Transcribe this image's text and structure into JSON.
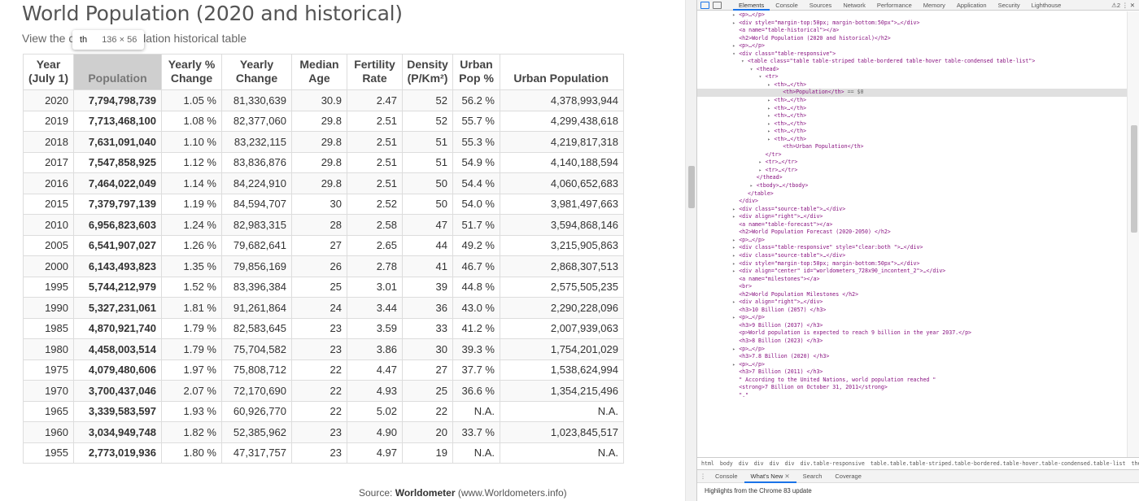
{
  "page": {
    "title": "World Population (2020 and historical)",
    "subtitle": "View the complete population historical table",
    "tooltip": {
      "tag": "th",
      "size": "136 × 56"
    },
    "source_prefix": "Source: ",
    "source_name": "Worldometer",
    "source_suffix": " (www.Worldometers.info)"
  },
  "table": {
    "headers": [
      {
        "line1": "Year",
        "line2": "(July 1)"
      },
      {
        "line1": "",
        "line2": "Population"
      },
      {
        "line1": "Yearly %",
        "line2": "Change"
      },
      {
        "line1": "Yearly",
        "line2": "Change"
      },
      {
        "line1": "Median",
        "line2": "Age"
      },
      {
        "line1": "Fertility",
        "line2": "Rate"
      },
      {
        "line1": "Density",
        "line2": "(P/Km²)"
      },
      {
        "line1": "Urban",
        "line2": "Pop %"
      },
      {
        "line1": "",
        "line2": "Urban Population"
      }
    ],
    "rows": [
      [
        "2020",
        "7,794,798,739",
        "1.05 %",
        "81,330,639",
        "30.9",
        "2.47",
        "52",
        "56.2 %",
        "4,378,993,944"
      ],
      [
        "2019",
        "7,713,468,100",
        "1.08 %",
        "82,377,060",
        "29.8",
        "2.51",
        "52",
        "55.7 %",
        "4,299,438,618"
      ],
      [
        "2018",
        "7,631,091,040",
        "1.10 %",
        "83,232,115",
        "29.8",
        "2.51",
        "51",
        "55.3 %",
        "4,219,817,318"
      ],
      [
        "2017",
        "7,547,858,925",
        "1.12 %",
        "83,836,876",
        "29.8",
        "2.51",
        "51",
        "54.9 %",
        "4,140,188,594"
      ],
      [
        "2016",
        "7,464,022,049",
        "1.14 %",
        "84,224,910",
        "29.8",
        "2.51",
        "50",
        "54.4 %",
        "4,060,652,683"
      ],
      [
        "2015",
        "7,379,797,139",
        "1.19 %",
        "84,594,707",
        "30",
        "2.52",
        "50",
        "54.0 %",
        "3,981,497,663"
      ],
      [
        "2010",
        "6,956,823,603",
        "1.24 %",
        "82,983,315",
        "28",
        "2.58",
        "47",
        "51.7 %",
        "3,594,868,146"
      ],
      [
        "2005",
        "6,541,907,027",
        "1.26 %",
        "79,682,641",
        "27",
        "2.65",
        "44",
        "49.2 %",
        "3,215,905,863"
      ],
      [
        "2000",
        "6,143,493,823",
        "1.35 %",
        "79,856,169",
        "26",
        "2.78",
        "41",
        "46.7 %",
        "2,868,307,513"
      ],
      [
        "1995",
        "5,744,212,979",
        "1.52 %",
        "83,396,384",
        "25",
        "3.01",
        "39",
        "44.8 %",
        "2,575,505,235"
      ],
      [
        "1990",
        "5,327,231,061",
        "1.81 %",
        "91,261,864",
        "24",
        "3.44",
        "36",
        "43.0 %",
        "2,290,228,096"
      ],
      [
        "1985",
        "4,870,921,740",
        "1.79 %",
        "82,583,645",
        "23",
        "3.59",
        "33",
        "41.2 %",
        "2,007,939,063"
      ],
      [
        "1980",
        "4,458,003,514",
        "1.79 %",
        "75,704,582",
        "23",
        "3.86",
        "30",
        "39.3 %",
        "1,754,201,029"
      ],
      [
        "1975",
        "4,079,480,606",
        "1.97 %",
        "75,808,712",
        "22",
        "4.47",
        "27",
        "37.7 %",
        "1,538,624,994"
      ],
      [
        "1970",
        "3,700,437,046",
        "2.07 %",
        "72,170,690",
        "22",
        "4.93",
        "25",
        "36.6 %",
        "1,354,215,496"
      ],
      [
        "1965",
        "3,339,583,597",
        "1.93 %",
        "60,926,770",
        "22",
        "5.02",
        "22",
        "N.A.",
        "N.A."
      ],
      [
        "1960",
        "3,034,949,748",
        "1.82 %",
        "52,385,962",
        "23",
        "4.90",
        "20",
        "33.7 %",
        "1,023,845,517"
      ],
      [
        "1955",
        "2,773,019,936",
        "1.80 %",
        "47,317,757",
        "23",
        "4.97",
        "19",
        "N.A.",
        "N.A."
      ]
    ]
  },
  "devtools": {
    "tabs": [
      "Elements",
      "Console",
      "Sources",
      "Network",
      "Performance",
      "Memory",
      "Application",
      "Security",
      "Lighthouse"
    ],
    "active_tab": "Elements",
    "toolbar_right": "⚠2 ⋮ ✕",
    "dom_lines": [
      {
        "indent": 8,
        "toggle": "▸",
        "text": "<p>…</p>"
      },
      {
        "indent": 8,
        "toggle": "▸",
        "text": "<div style=\"margin-top:50px; margin-bottom:50px\">…</div>"
      },
      {
        "indent": 8,
        "toggle": "",
        "text": "<a name=\"table-historical\"></a>"
      },
      {
        "indent": 8,
        "toggle": "",
        "text": "<h2>World Population (2020 and historical)</h2>"
      },
      {
        "indent": 8,
        "toggle": "▸",
        "text": "<p>…</p>"
      },
      {
        "indent": 8,
        "toggle": "▾",
        "text": "<div class=\"table-responsive\">"
      },
      {
        "indent": 10,
        "toggle": "▾",
        "text": "<table class=\"table table-striped table-bordered table-hover table-condensed table-list\">"
      },
      {
        "indent": 12,
        "toggle": "▾",
        "text": "<thead>"
      },
      {
        "indent": 14,
        "toggle": "▾",
        "text": "<tr>"
      },
      {
        "indent": 16,
        "toggle": "▸",
        "text": "<th>…</th>"
      },
      {
        "indent": 18,
        "toggle": "",
        "text": "<th>Population</th>",
        "hint": " == $0",
        "selected": true
      },
      {
        "indent": 16,
        "toggle": "▸",
        "text": "<th>…</th>"
      },
      {
        "indent": 16,
        "toggle": "▸",
        "text": "<th>…</th>"
      },
      {
        "indent": 16,
        "toggle": "▸",
        "text": "<th>…</th>"
      },
      {
        "indent": 16,
        "toggle": "▸",
        "text": "<th>…</th>"
      },
      {
        "indent": 16,
        "toggle": "▸",
        "text": "<th>…</th>"
      },
      {
        "indent": 16,
        "toggle": "▸",
        "text": "<th>…</th>"
      },
      {
        "indent": 18,
        "toggle": "",
        "text": "<th>Urban Population</th>"
      },
      {
        "indent": 14,
        "toggle": "",
        "text": "</tr>"
      },
      {
        "indent": 14,
        "toggle": "▸",
        "text": "<tr>…</tr>"
      },
      {
        "indent": 14,
        "toggle": "▸",
        "text": "<tr>…</tr>"
      },
      {
        "indent": 12,
        "toggle": "",
        "text": "</thead>"
      },
      {
        "indent": 12,
        "toggle": "▸",
        "text": "<tbody>…</tbody>"
      },
      {
        "indent": 10,
        "toggle": "",
        "text": "</table>"
      },
      {
        "indent": 8,
        "toggle": "",
        "text": "</div>"
      },
      {
        "indent": 8,
        "toggle": "▸",
        "text": "<div class=\"source-table\">…</div>"
      },
      {
        "indent": 8,
        "toggle": "▸",
        "text": "<div align=\"right\">…</div>"
      },
      {
        "indent": 8,
        "toggle": "",
        "text": "<a name=\"table-forecast\"></a>"
      },
      {
        "indent": 8,
        "toggle": "",
        "text": "<h2>World Population Forecast (2020-2050) </h2>"
      },
      {
        "indent": 8,
        "toggle": "▸",
        "text": "<p>…</p>"
      },
      {
        "indent": 8,
        "toggle": "▸",
        "text": "<div class=\"table-responsive\" style=\"clear:both \">…</div>"
      },
      {
        "indent": 8,
        "toggle": "▸",
        "text": "<div class=\"source-table\">…</div>"
      },
      {
        "indent": 8,
        "toggle": "▸",
        "text": "<div style=\"margin-top:50px; margin-bottom:50px\">…</div>"
      },
      {
        "indent": 8,
        "toggle": "▸",
        "text": "<div align=\"center\" id=\"worldometers_728x90_incontent_2\">…</div>"
      },
      {
        "indent": 8,
        "toggle": "",
        "text": "<a name=\"milestones\"></a>"
      },
      {
        "indent": 8,
        "toggle": "",
        "text": "<br>"
      },
      {
        "indent": 8,
        "toggle": "",
        "text": "<h2>World Population Milestones </h2>"
      },
      {
        "indent": 8,
        "toggle": "▸",
        "text": "<div align=\"right\">…</div>"
      },
      {
        "indent": 8,
        "toggle": "",
        "text": "<h3>10 Billion (2057) </h3>"
      },
      {
        "indent": 8,
        "toggle": "▸",
        "text": "<p>…</p>"
      },
      {
        "indent": 8,
        "toggle": "",
        "text": "<h3>9 Billion (2037) </h3>"
      },
      {
        "indent": 8,
        "toggle": "",
        "text": "<p>World population is expected to reach 9 billion in the year 2037.</p>"
      },
      {
        "indent": 8,
        "toggle": "",
        "text": "<h3>8 Billion (2023) </h3>"
      },
      {
        "indent": 8,
        "toggle": "▸",
        "text": "<p>…</p>"
      },
      {
        "indent": 8,
        "toggle": "",
        "text": "<h3>7.8 Billion (2020) </h3>"
      },
      {
        "indent": 8,
        "toggle": "▸",
        "text": "<p>…</p>"
      },
      {
        "indent": 8,
        "toggle": "",
        "text": "<h3>7 Billion (2011) </h3>"
      },
      {
        "indent": 8,
        "toggle": "",
        "text": "\" According to the United Nations, world population reached \""
      },
      {
        "indent": 8,
        "toggle": "",
        "text": "<strong>7 Billion on October 31, 2011</strong>"
      },
      {
        "indent": 8,
        "toggle": "",
        "text": "\".\""
      }
    ],
    "breadcrumb": [
      "html",
      "body",
      "div",
      "div",
      "div",
      "div",
      "div.table-responsive",
      "table.table.table-striped.table-bordered.table-hover.table-condensed.table-list",
      "thead",
      "tr",
      "th"
    ],
    "drawer_tabs": [
      "Console",
      "What's New",
      "Search",
      "Coverage"
    ],
    "drawer_active": "What's New",
    "drawer_message": "Highlights from the Chrome 83 update"
  }
}
